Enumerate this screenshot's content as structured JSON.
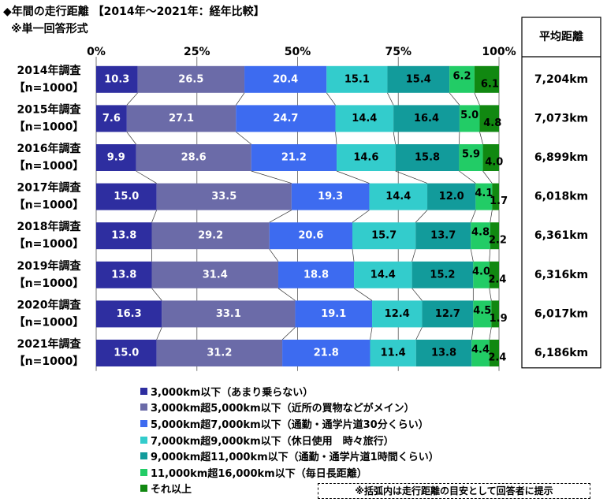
{
  "title": "◆年間の走行距離 【2014年～2021年：経年比較】",
  "subtitle": "※単一回答形式",
  "avg_header": "平均距離",
  "note": "※括弧内は走行距離の目安として回答者に提示",
  "colors": [
    "#2E2EA0",
    "#6B6BA8",
    "#3D6BF0",
    "#33CCCC",
    "#129B9B",
    "#22CC66",
    "#118811"
  ],
  "chart_data": {
    "type": "bar",
    "orientation": "horizontal",
    "stacked": true,
    "xlim": [
      0,
      100
    ],
    "x_ticks": [
      "0%",
      "25%",
      "50%",
      "75%",
      "100%"
    ],
    "categories": [
      {
        "year": "2014年調査",
        "n": "【n=1000】",
        "avg": "7,204km"
      },
      {
        "year": "2015年調査",
        "n": "【n=1000】",
        "avg": "7,073km"
      },
      {
        "year": "2016年調査",
        "n": "【n=1000】",
        "avg": "6,899km"
      },
      {
        "year": "2017年調査",
        "n": "【n=1000】",
        "avg": "6,018km"
      },
      {
        "year": "2018年調査",
        "n": "【n=1000】",
        "avg": "6,361km"
      },
      {
        "year": "2019年調査",
        "n": "【n=1000】",
        "avg": "6,316km"
      },
      {
        "year": "2020年調査",
        "n": "【n=1000】",
        "avg": "6,017km"
      },
      {
        "year": "2021年調査",
        "n": "【n=1000】",
        "avg": "6,186km"
      }
    ],
    "series": [
      {
        "name": "3,000km以下（あまり乗らない）",
        "values": [
          10.3,
          7.6,
          9.9,
          15.0,
          13.8,
          13.8,
          16.3,
          15.0
        ]
      },
      {
        "name": "3,000km超5,000km以下（近所の買物などがメイン）",
        "values": [
          26.5,
          27.1,
          28.6,
          33.5,
          29.2,
          31.4,
          33.1,
          31.2
        ]
      },
      {
        "name": "5,000km超7,000km以下（通勤・通学片道30分くらい）",
        "values": [
          20.4,
          24.7,
          21.2,
          19.3,
          20.6,
          18.8,
          19.1,
          21.8
        ]
      },
      {
        "name": "7,000km超9,000km以下（休日使用　時々旅行）",
        "values": [
          15.1,
          14.4,
          14.6,
          14.4,
          15.7,
          14.4,
          12.4,
          11.4
        ]
      },
      {
        "name": "9,000km超11,000km以下（通勤・通学片道1時間くらい）",
        "values": [
          15.4,
          16.4,
          15.8,
          12.0,
          13.7,
          15.2,
          12.7,
          13.8
        ]
      },
      {
        "name": "11,000km超16,000km以下（毎日長距離）",
        "values": [
          6.2,
          5.0,
          5.9,
          4.1,
          4.8,
          4.0,
          4.5,
          4.4
        ]
      },
      {
        "name": "それ以上",
        "values": [
          6.1,
          4.8,
          4.0,
          1.7,
          2.2,
          2.4,
          1.9,
          2.4
        ]
      }
    ]
  }
}
